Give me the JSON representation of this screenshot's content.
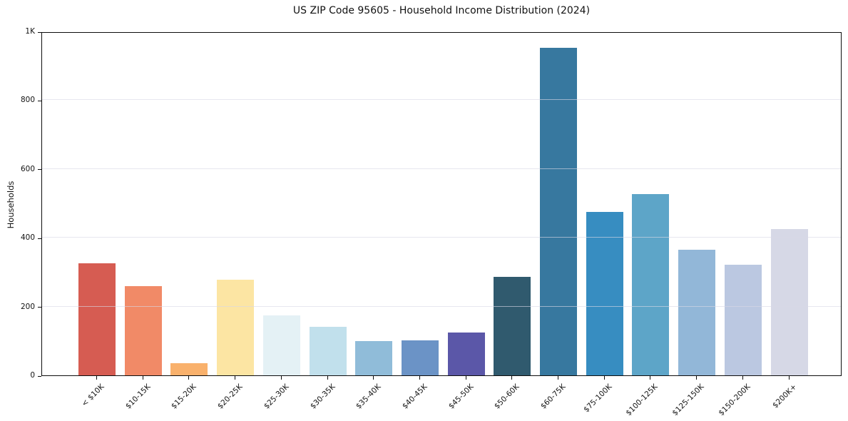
{
  "page": {
    "background_color": "#ffffff",
    "text_color": "#121212",
    "gridline_color": "#e7e7ef",
    "axis_color": "#0d0d0d"
  },
  "chart_data": {
    "type": "bar",
    "title": "US ZIP Code 95605 - Household Income Distribution (2024)",
    "xlabel": "",
    "ylabel": "Households",
    "categories": [
      "< $10K",
      "$10-15K",
      "$15-20K",
      "$20-25K",
      "$25-30K",
      "$30-35K",
      "$35-40K",
      "$40-45K",
      "$45-50K",
      "$50-60K",
      "$60-75K",
      "$75-100K",
      "$100-125K",
      "$125-150K",
      "$150-200K",
      "$200K+"
    ],
    "values": [
      325,
      260,
      36,
      278,
      175,
      141,
      100,
      102,
      124,
      286,
      953,
      475,
      528,
      365,
      322,
      425
    ],
    "bar_colors": [
      "#d65c52",
      "#f18a67",
      "#f9b16c",
      "#fce5a3",
      "#e4f1f5",
      "#c1e0ec",
      "#90bcd9",
      "#6b93c6",
      "#5b57a8",
      "#305a6e",
      "#37789f",
      "#378dc1",
      "#5da5c8",
      "#92b7d8",
      "#bbc8e1",
      "#d6d8e6"
    ],
    "ylim": [
      0,
      1000
    ],
    "yticks": [
      {
        "value": 0,
        "label": "0"
      },
      {
        "value": 200,
        "label": "200"
      },
      {
        "value": 400,
        "label": "400"
      },
      {
        "value": 600,
        "label": "600"
      },
      {
        "value": 800,
        "label": "800"
      },
      {
        "value": 1000,
        "label": "1K"
      }
    ],
    "grid": "horizontal-on-top",
    "legend": "none",
    "x_tick_rotation_deg": 45
  }
}
